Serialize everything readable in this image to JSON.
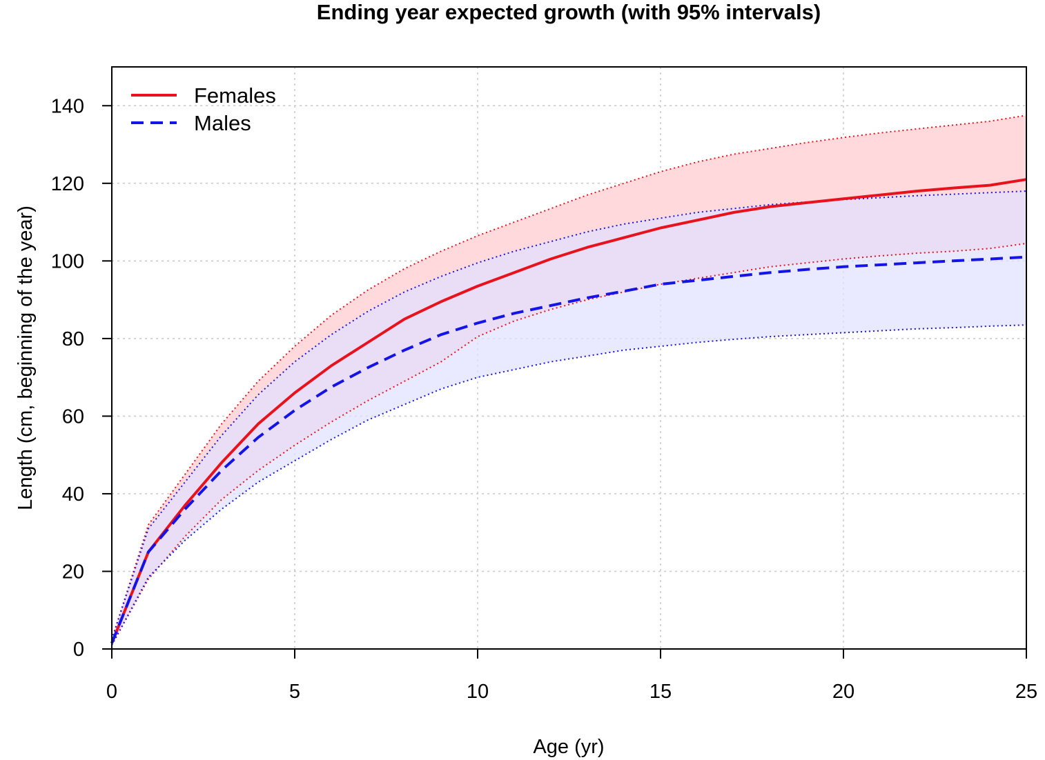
{
  "chart_data": {
    "type": "line",
    "title": "Ending year expected growth (with 95% intervals)",
    "xlabel": "Age (yr)",
    "ylabel": "Length (cm, beginning of the year)",
    "xlim": [
      0,
      25
    ],
    "ylim": [
      0,
      150
    ],
    "x_ticks": [
      "0",
      "5",
      "10",
      "15",
      "20",
      "25"
    ],
    "y_ticks": [
      "0",
      "20",
      "40",
      "60",
      "80",
      "100",
      "120",
      "140"
    ],
    "grid": true,
    "legend_position": "top-left",
    "x": [
      0,
      1,
      2,
      3,
      4,
      5,
      6,
      7,
      8,
      9,
      10,
      11,
      12,
      13,
      14,
      15,
      16,
      17,
      18,
      19,
      20,
      21,
      22,
      23,
      24,
      25
    ],
    "series": [
      {
        "name": "Females",
        "color": "#e8121c",
        "fill": "#ffd9dc",
        "style": "solid",
        "values": [
          1.5,
          25,
          37,
          48,
          58,
          66,
          73,
          79,
          85,
          89.5,
          93.5,
          97,
          100.5,
          103.5,
          106,
          108.5,
          110.5,
          112.5,
          114,
          115,
          116,
          117,
          118,
          118.8,
          119.5,
          121
        ],
        "upper": [
          2.5,
          32,
          45,
          58,
          69,
          78,
          86,
          92.5,
          98,
          102.5,
          106.5,
          110,
          113.5,
          117,
          120,
          123,
          125.5,
          127.5,
          129,
          130.5,
          131.8,
          133,
          134,
          135,
          136,
          137.5
        ],
        "lower": [
          1,
          18,
          29,
          38.5,
          46,
          52.5,
          58.5,
          64,
          69,
          74,
          80.5,
          84.5,
          87.5,
          90,
          92,
          94,
          95.5,
          97,
          98.5,
          99.5,
          100.5,
          101.3,
          102,
          102.5,
          103.2,
          104.5
        ]
      },
      {
        "name": "Males",
        "color": "#1414e6",
        "fill": "#e0e0ff",
        "style": "dashed",
        "values": [
          1.5,
          25,
          36,
          46,
          54.5,
          61.5,
          67.5,
          72.5,
          77,
          81,
          84,
          86.5,
          88.5,
          90.5,
          92.2,
          94,
          95,
          96,
          97,
          97.8,
          98.5,
          99,
          99.5,
          100,
          100.5,
          101
        ],
        "upper": [
          2.5,
          31,
          43,
          55,
          65.5,
          74,
          81,
          87,
          92,
          96,
          99.5,
          102.5,
          105,
          107.5,
          109.5,
          111,
          112.5,
          113.5,
          114.5,
          115.2,
          115.8,
          116.3,
          116.8,
          117.2,
          117.6,
          118
        ],
        "lower": [
          1,
          18.5,
          28,
          36,
          43,
          48.5,
          54,
          59,
          63,
          67,
          70,
          72,
          74,
          75.5,
          77,
          78,
          79,
          79.8,
          80.5,
          81,
          81.5,
          82,
          82.5,
          82.8,
          83.2,
          83.5
        ]
      }
    ]
  }
}
